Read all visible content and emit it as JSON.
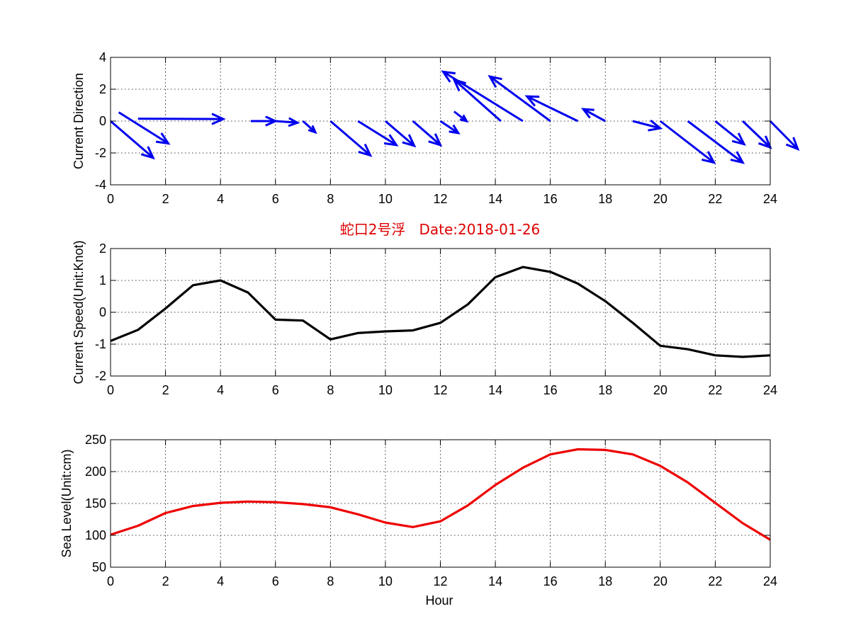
{
  "chart_data": [
    {
      "type": "quiver",
      "ylabel": "Current Direction",
      "xlim": [
        0,
        24
      ],
      "ylim": [
        -4,
        4
      ],
      "xticks": [
        0,
        2,
        4,
        6,
        8,
        10,
        12,
        14,
        16,
        18,
        20,
        22,
        24
      ],
      "yticks": [
        -4,
        -2,
        0,
        2,
        4
      ],
      "grid": true,
      "color": "#0000ee",
      "series": [
        {
          "values": [
            [
              0,
              0,
              1.55,
              -2.3
            ],
            [
              0.3,
              0.55,
              1.8,
              -1.95
            ],
            [
              1,
              0.15,
              3.1,
              -0.02
            ],
            [
              5.1,
              0,
              0.9,
              0
            ],
            [
              6,
              0,
              0.8,
              -0.1
            ],
            [
              7,
              0,
              0.45,
              -0.7
            ],
            [
              8,
              0,
              1.45,
              -2.15
            ],
            [
              9,
              0,
              1.4,
              -1.5
            ],
            [
              10,
              0,
              1.05,
              -1.55
            ],
            [
              11,
              0,
              1,
              -1.5
            ],
            [
              12,
              0,
              0.65,
              -0.75
            ],
            [
              12.5,
              0.6,
              0.45,
              -0.6
            ],
            [
              14.2,
              0,
              -1.7,
              2.6
            ],
            [
              15,
              0,
              -2.9,
              3.1
            ],
            [
              16,
              0,
              -2.2,
              2.8
            ],
            [
              17,
              0,
              -1.85,
              1.55
            ],
            [
              18,
              0,
              -0.8,
              0.75
            ],
            [
              19,
              0,
              1,
              -0.45
            ],
            [
              20,
              0,
              1.95,
              -2.6
            ],
            [
              21,
              0,
              2,
              -2.6
            ],
            [
              22,
              0,
              1.05,
              -1.45
            ],
            [
              23,
              0,
              1,
              -1.65
            ],
            [
              24,
              0,
              1,
              -1.75
            ]
          ]
        }
      ]
    },
    {
      "type": "line",
      "title": "蛇口2号浮   Date:2018-01-26",
      "ylabel": "Current Speed(Unit:Knot)",
      "xlim": [
        0,
        24
      ],
      "ylim": [
        -2,
        2
      ],
      "xticks": [
        0,
        2,
        4,
        6,
        8,
        10,
        12,
        14,
        16,
        18,
        20,
        22,
        24
      ],
      "yticks": [
        -2,
        -1,
        0,
        1,
        2
      ],
      "grid": true,
      "color": "#000000",
      "x": [
        0,
        1,
        2,
        3,
        4,
        5,
        6,
        7,
        8,
        9,
        10,
        11,
        12,
        13,
        14,
        15,
        16,
        17,
        18,
        19,
        20,
        21,
        22,
        23,
        24
      ],
      "series": [
        {
          "values": [
            -0.9,
            -0.55,
            0.12,
            0.85,
            1.0,
            0.62,
            -0.23,
            -0.26,
            -0.85,
            -0.65,
            -0.6,
            -0.57,
            -0.33,
            0.25,
            1.1,
            1.42,
            1.27,
            0.9,
            0.35,
            -0.33,
            -1.05,
            -1.16,
            -1.35,
            -1.4,
            -1.35
          ]
        }
      ]
    },
    {
      "type": "line",
      "xlabel": "Hour",
      "ylabel": "Sea Level(Unit:cm)",
      "xlim": [
        0,
        24
      ],
      "ylim": [
        50,
        250
      ],
      "xticks": [
        0,
        2,
        4,
        6,
        8,
        10,
        12,
        14,
        16,
        18,
        20,
        22,
        24
      ],
      "yticks": [
        50,
        100,
        150,
        200,
        250
      ],
      "grid": true,
      "color": "#ee0000",
      "x": [
        0,
        1,
        2,
        3,
        4,
        5,
        6,
        7,
        8,
        9,
        10,
        11,
        12,
        13,
        14,
        15,
        16,
        17,
        18,
        19,
        20,
        21,
        22,
        23,
        24
      ],
      "series": [
        {
          "values": [
            101,
            115,
            135,
            146,
            151,
            153,
            152,
            149,
            144,
            133,
            120,
            113,
            122,
            147,
            179,
            206,
            227,
            235,
            234,
            227,
            209,
            183,
            151,
            119,
            93
          ]
        }
      ]
    }
  ]
}
